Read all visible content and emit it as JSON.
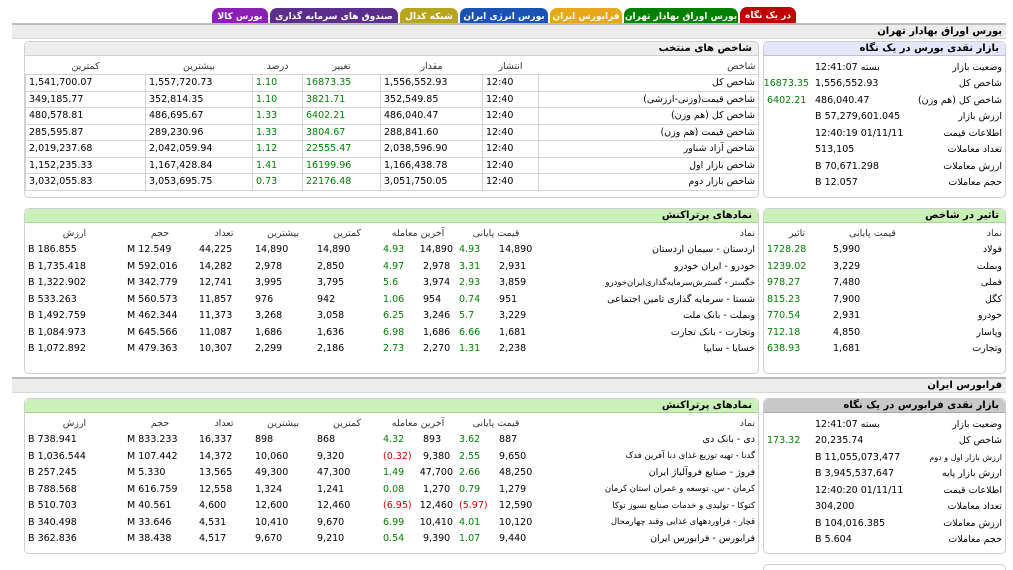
{
  "tabs": [
    {
      "label": "در یک نگاه",
      "color": "#c00000"
    },
    {
      "label": "بورس اوراق بهادار تهران",
      "color": "#008000"
    },
    {
      "label": "فرابورس ایران",
      "color": "#e6a817"
    },
    {
      "label": "بورس انرژی ایران",
      "color": "#1a52b4"
    },
    {
      "label": "شبکه کدال",
      "color": "#b7a51e"
    },
    {
      "label": "صندوق های سرمایه گذاری",
      "color": "#5a2e8a"
    },
    {
      "label": "بورس کالا",
      "color": "#8b1fb6"
    }
  ],
  "tse": {
    "title": "بورس اوراق بهادار تهران",
    "glance": {
      "title": "بازار نقدی بورس در یک نگاه",
      "rows": [
        {
          "label": "وضعیت بازار",
          "value": "بسته 12:41:07",
          "change": ""
        },
        {
          "label": "شاخص کل",
          "value": "1,556,552.93",
          "change": "16873.35"
        },
        {
          "label": "شاخص کل (هم وزن)",
          "value": "486,040.47",
          "change": "6402.21"
        },
        {
          "label": "ارزش بازار",
          "value": "57,279,601.045 B",
          "change": ""
        },
        {
          "label": "اطلاعات قیمت",
          "value": "01/11/11 12:40:19",
          "change": ""
        },
        {
          "label": "تعداد معاملات",
          "value": "513,105",
          "change": ""
        },
        {
          "label": "ارزش معاملات",
          "value": "70,671.298 B",
          "change": ""
        },
        {
          "label": "حجم معاملات",
          "value": "12.057 B",
          "change": ""
        }
      ]
    },
    "indices": {
      "title": "شاخص های منتخب",
      "columns": [
        "شاخص",
        "انتشار",
        "مقدار",
        "تغییر",
        "درصد",
        "بیشترین",
        "کمترین"
      ],
      "rows": [
        {
          "name": "شاخص کل",
          "time": "12:40",
          "value": "1,556,552.93",
          "change": "16873.35",
          "pct": "1.10",
          "high": "1,557,720.73",
          "low": "1,541,700.07"
        },
        {
          "name": "شاخص قیمت(وزنی-ارزشی)",
          "time": "12:40",
          "value": "352,549.85",
          "change": "3821.71",
          "pct": "1.10",
          "high": "352,814.35",
          "low": "349,185.77"
        },
        {
          "name": "شاخص کل (هم وزن)",
          "time": "12:40",
          "value": "486,040.47",
          "change": "6402.21",
          "pct": "1.33",
          "high": "486,695.67",
          "low": "480,578.81"
        },
        {
          "name": "شاخص قیمت (هم وزن)",
          "time": "12:40",
          "value": "288,841.60",
          "change": "3804.67",
          "pct": "1.33",
          "high": "289,230.96",
          "low": "285,595.87"
        },
        {
          "name": "شاخص آزاد شناور",
          "time": "12:40",
          "value": "2,038,596.90",
          "change": "22555.47",
          "pct": "1.12",
          "high": "2,042,059.94",
          "low": "2,019,237.68"
        },
        {
          "name": "شاخص بازار اول",
          "time": "12:40",
          "value": "1,166,438.78",
          "change": "16199.96",
          "pct": "1.41",
          "high": "1,167,428.84",
          "low": "1,152,235.33"
        },
        {
          "name": "شاخص بازار دوم",
          "time": "12:40",
          "value": "3,051,750.05",
          "change": "22176.48",
          "pct": "0.73",
          "high": "3,053,695.75",
          "low": "3,032,055.83"
        }
      ]
    },
    "impact": {
      "title": "تاثیر در شاخص",
      "columns": [
        "نماد",
        "قیمت پایانی",
        "تاثیر"
      ],
      "rows": [
        {
          "sym": "فولاد",
          "price": "5,990",
          "impact": "1728.28"
        },
        {
          "sym": "وبملت",
          "price": "3,229",
          "impact": "1239.02"
        },
        {
          "sym": "فملی",
          "price": "7,480",
          "impact": "978.27"
        },
        {
          "sym": "کگل",
          "price": "7,900",
          "impact": "815.23"
        },
        {
          "sym": "خودرو",
          "price": "2,931",
          "impact": "770.54"
        },
        {
          "sym": "وپاسار",
          "price": "4,850",
          "impact": "712.18"
        },
        {
          "sym": "وتجارت",
          "price": "1,681",
          "impact": "638.93"
        }
      ]
    },
    "active": {
      "title": "نمادهای پرتراکنش",
      "columns": [
        "نماد",
        "قیمت پایانی",
        "آخرین معامله",
        "کمترین",
        "بیشترین",
        "تعداد",
        "حجم",
        "ارزش"
      ],
      "rows": [
        {
          "name": "اردستان - سیمان اردستان",
          "close": "14,890",
          "close_chg": "4.93",
          "last": "14,890",
          "last_chg": "4.93",
          "low": "14,890",
          "high": "14,890",
          "count": "44,225",
          "vol": "12.549 M",
          "value": "186.855 B"
        },
        {
          "name": "خودرو - ایران خودرو",
          "close": "2,931",
          "close_chg": "3.31",
          "last": "2,978",
          "last_chg": "4.97",
          "low": "2,850",
          "high": "2,978",
          "count": "14,282",
          "vol": "592.016 M",
          "value": "1,735.418 B"
        },
        {
          "name": "خگستر - گسترش‌سرمایه‌گذاری‌ایران‌خودرو",
          "close": "3,859",
          "close_chg": "2.93",
          "last": "3,974",
          "last_chg": "5.6",
          "low": "3,795",
          "high": "3,995",
          "count": "12,741",
          "vol": "342.779 M",
          "value": "1,322.902 B"
        },
        {
          "name": "شستا - سرمایه گذاری تامین اجتماعی",
          "close": "951",
          "close_chg": "0.74",
          "last": "954",
          "last_chg": "1.06",
          "low": "942",
          "high": "976",
          "count": "11,857",
          "vol": "560.573 M",
          "value": "533.263 B"
        },
        {
          "name": "وبملت - بانک ملت",
          "close": "3,229",
          "close_chg": "5.7",
          "last": "3,246",
          "last_chg": "6.25",
          "low": "3,058",
          "high": "3,268",
          "count": "11,373",
          "vol": "462.344 M",
          "value": "1,492.759 B"
        },
        {
          "name": "وتجارت - بانک تجارت",
          "close": "1,681",
          "close_chg": "6.66",
          "last": "1,686",
          "last_chg": "6.98",
          "low": "1,636",
          "high": "1,686",
          "count": "11,087",
          "vol": "645.566 M",
          "value": "1,084.973 B"
        },
        {
          "name": "خسایا - سایپا",
          "close": "2,238",
          "close_chg": "1.31",
          "last": "2,270",
          "last_chg": "2.73",
          "low": "2,186",
          "high": "2,299",
          "count": "10,307",
          "vol": "479.363 M",
          "value": "1,072.892 B"
        }
      ]
    }
  },
  "ifb": {
    "title": "فرابورس ایران",
    "glance": {
      "title": "بازار نقدی فرابورس در یک نگاه",
      "rows": [
        {
          "label": "وضعیت بازار",
          "value": "بسته 12:41:07",
          "change": ""
        },
        {
          "label": "شاخص کل",
          "value": "20,235.74",
          "change": "173.32"
        },
        {
          "label": "ارزش بازار اول و دوم",
          "value": "11,055,073,477 B",
          "change": ""
        },
        {
          "label": "ارزش بازار پایه",
          "value": "3,945,537,647 B",
          "change": ""
        },
        {
          "label": "اطلاعات قیمت",
          "value": "01/11/11 12:40:20",
          "change": ""
        },
        {
          "label": "تعداد معاملات",
          "value": "304,200",
          "change": ""
        },
        {
          "label": "ارزش معاملات",
          "value": "104,016.385 B",
          "change": ""
        },
        {
          "label": "حجم معاملات",
          "value": "5.604 B",
          "change": ""
        }
      ]
    },
    "active": {
      "title": "نمادهای پرتراکنش",
      "columns": [
        "نماد",
        "قیمت پایانی",
        "آخرین معامله",
        "کمترین",
        "بیشترین",
        "تعداد",
        "حجم",
        "ارزش"
      ],
      "rows": [
        {
          "name": "دی - بانک دی",
          "close": "887",
          "close_chg": "3.62",
          "last": "893",
          "last_chg": "4.32",
          "low": "868",
          "high": "898",
          "count": "16,337",
          "vol": "833.233 M",
          "value": "738.941 B"
        },
        {
          "name": "گدنا - تهیه توزیع غذای دنا آفرین فدک",
          "close": "9,650",
          "close_chg": "2.55",
          "last": "9,380",
          "last_chg": "(0.32)",
          "low": "9,320",
          "high": "10,060",
          "count": "14,372",
          "vol": "107.442 M",
          "value": "1,036.544 B"
        },
        {
          "name": "فروژ - صنایع فروآلیاژ ایران",
          "close": "48,250",
          "close_chg": "2.66",
          "last": "47,700",
          "last_chg": "1.49",
          "low": "47,300",
          "high": "49,300",
          "count": "13,565",
          "vol": "5.330 M",
          "value": "257.245 B"
        },
        {
          "name": "کرمان - س. توسعه و عمران استان کرمان",
          "close": "1,279",
          "close_chg": "0.79",
          "last": "1,270",
          "last_chg": "0.08",
          "low": "1,241",
          "high": "1,324",
          "count": "12,558",
          "vol": "616.759 M",
          "value": "788.568 B"
        },
        {
          "name": "کتوکا - تولیدی و خدمات صنایع نسوز توکا",
          "close": "12,590",
          "close_chg": "(5.97)",
          "last": "12,460",
          "last_chg": "(6.95)",
          "low": "12,460",
          "high": "12,600",
          "count": "4,600",
          "vol": "40.561 M",
          "value": "510.703 B"
        },
        {
          "name": "قچار - فراوردههای غذایی وقند چهارمحال",
          "close": "10,120",
          "close_chg": "4.01",
          "last": "10,410",
          "last_chg": "6.99",
          "low": "9,670",
          "high": "10,410",
          "count": "4,531",
          "vol": "33.646 M",
          "value": "340.498 B"
        },
        {
          "name": "فرابورس - فرابورس ایران",
          "close": "9,440",
          "close_chg": "1.07",
          "last": "9,390",
          "last_chg": "0.54",
          "low": "9,210",
          "high": "9,670",
          "count": "4,517",
          "vol": "38.438 M",
          "value": "362.836 B"
        }
      ]
    }
  }
}
